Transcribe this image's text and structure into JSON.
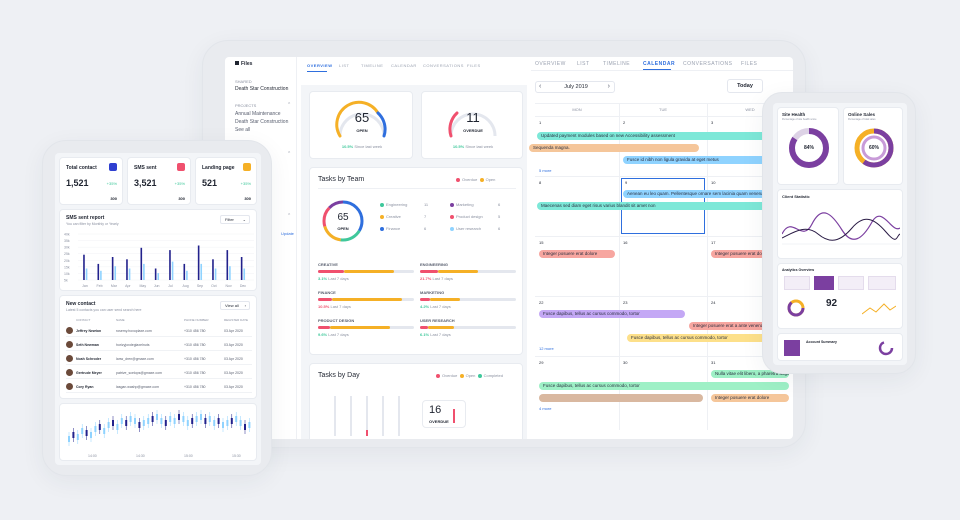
{
  "colors": {
    "blue": "#2f6fde",
    "green": "#3fc89b",
    "red": "#f0506e",
    "orange": "#f5b026",
    "purple": "#7b3fa0",
    "teal": "#7de8d8",
    "cyan": "#8fd3ff",
    "violet": "#c4a8f5",
    "yellow": "#fde08a",
    "pink": "#f7a6a0",
    "bg": "#eef0f4"
  },
  "project": {
    "title": "Files",
    "shared_label": "SHARED",
    "shared_item": "Death Star Construction",
    "projects_label": "PROJECTS",
    "project_items": [
      "Annual Maintenance",
      "Death Star Construction",
      "See all"
    ],
    "update_label": "Update"
  },
  "tabs": [
    "OVERVIEW",
    "LIST",
    "TIMELINE",
    "CALENDAR",
    "CONVERSATIONS",
    "FILES"
  ],
  "open_card": {
    "value": "65",
    "label": "OPEN",
    "delta": "10.5%",
    "since": "Since last week"
  },
  "overdue_card": {
    "value": "11",
    "label": "OVERDUE",
    "delta": "10.5%",
    "since": "Since last week"
  },
  "tasks_by_team": {
    "title": "Tasks by Team",
    "legend": [
      "Overdue",
      "Open"
    ],
    "donut_value": "65",
    "donut_label": "OPEN",
    "teams": [
      {
        "name": "Engineering",
        "count": "11"
      },
      {
        "name": "Marketing",
        "count": "6"
      },
      {
        "name": "Creative",
        "count": "7"
      },
      {
        "name": "Product design",
        "count": "5"
      },
      {
        "name": "Finance",
        "count": "6"
      },
      {
        "name": "User research",
        "count": "6"
      }
    ],
    "rows": [
      {
        "name": "CREATIVE",
        "delta": "3.1%",
        "since": "Last 7 days"
      },
      {
        "name": "ENGINEERING",
        "delta": "21.7%",
        "since": "Last 7 days"
      },
      {
        "name": "FINANCE",
        "delta": "10.5%",
        "since": "Last 7 days"
      },
      {
        "name": "MARKETING",
        "delta": "4.2%",
        "since": "Last 7 days"
      },
      {
        "name": "PRODUCT DESIGN",
        "delta": "9.6%",
        "since": "Last 7 days"
      },
      {
        "name": "USER RESEARCH",
        "delta": "6.1%",
        "since": "Last 7 days"
      }
    ]
  },
  "tasks_by_day": {
    "title": "Tasks by Day",
    "legend": [
      "Overdue",
      "Open",
      "Completed"
    ],
    "value": "16",
    "label": "OVERDUE"
  },
  "calendar": {
    "month": "July 2019",
    "today_label": "Today",
    "days": [
      "MON",
      "TUE",
      "WED"
    ],
    "dates": [
      "1",
      "2",
      "3",
      "8",
      "9",
      "10",
      "15",
      "16",
      "17",
      "22",
      "23",
      "24",
      "29",
      "30",
      "31"
    ],
    "more": [
      "5 more",
      "12 more",
      "4 more"
    ],
    "events": [
      "Updated payment modules based on new Accessibility assessment",
      "Sequenda magna.",
      "Fusce id nibh non ligula gravida at eget metus",
      "Aenean eu leo quam. Pellentesque ornare sem lacinia quam venenatis",
      "Maecenas sed diam eget risus varius blandit sit amet non",
      "Integer posuere erat dolore",
      "Integer posuere erat dolore",
      "Fusce dapibus, tellus ac cursus commodo, tortor",
      "Integer posuere erat a ante venenatis",
      "Fusce dapibus, tellus ac cursus commodo, tortor",
      "Nulla vitae elit libero, a pharetra augue",
      "Fusce dapibus, tellus ac cursus commodo, tortor",
      "Integer posuere erat dolore"
    ]
  },
  "phone": {
    "stats": [
      {
        "title": "Total contact",
        "value": "1,521",
        "delta": "+35%",
        "sub": "300"
      },
      {
        "title": "SMS sent",
        "value": "3,521",
        "delta": "+35%",
        "sub": "300"
      },
      {
        "title": "Landing page",
        "value": "521",
        "delta": "+35%",
        "sub": "300"
      }
    ],
    "sms_title": "SMS sent report",
    "sms_sub": "You can filter by Monthly or Yearly",
    "filter": "Filter",
    "chart_data": {
      "type": "bar",
      "categories": [
        "Jan",
        "Feb",
        "Mar",
        "Apr",
        "May",
        "Jun",
        "Jul",
        "Aug",
        "Sep",
        "Oct",
        "Nov",
        "Dec"
      ],
      "series": [
        {
          "values": [
            22,
            14,
            20,
            18,
            28,
            10,
            26,
            14,
            30,
            18,
            26,
            20
          ]
        },
        {
          "values": [
            10,
            8,
            12,
            10,
            14,
            6,
            16,
            8,
            14,
            10,
            12,
            10
          ]
        }
      ],
      "ylim": [
        0,
        40
      ],
      "yticks": [
        "40k",
        "35k",
        "30k",
        "25k",
        "20k",
        "15k",
        "10k",
        "5k"
      ]
    },
    "contacts_title": "New contact",
    "contacts_sub": "Latest 5 contacts you can user send search here",
    "view_all": "View all",
    "headers": [
      "CONTACT",
      "NAME",
      "PHONE NUMBER",
      "REGISTER DATE"
    ],
    "contacts": [
      {
        "name": "Jeffrey Newton",
        "email": "rosemy.hoxoplaxe.com",
        "phone": "+310 456 780",
        "date": "03 Apr 2020"
      },
      {
        "name": "Seth Newman",
        "email": "horizyjoxdeglaxelnuts",
        "phone": "+310 456 780",
        "date": "03 Apr 2020"
      },
      {
        "name": "Noah Schroder",
        "email": "lanw_dren@gmaxe.com",
        "phone": "+310 456 780",
        "date": "03 Apr 2020"
      },
      {
        "name": "Gertrude Meyer",
        "email": "patrive_scelops@gmaxe.com",
        "phone": "+310 456 780",
        "date": "03 Apr 2020"
      },
      {
        "name": "Cory Ryan",
        "email": "lasgan.washp@gmaxe.com",
        "phone": "+310 456 780",
        "date": "03 Apr 2020"
      }
    ],
    "times": [
      "14:00",
      "14:30",
      "15:00",
      "15:30"
    ]
  },
  "tablet": {
    "site_health": "Site Health",
    "site_health_sub": "Percentage of site health score",
    "site_value": "84%",
    "online_sales": "Online Sales",
    "online_sales_sub": "Percentage of total sales",
    "online_value": "60%",
    "client_stats": "Client Statistic",
    "analytics": "Analytics Overview",
    "big_value": "92",
    "account": "Account Summary"
  }
}
